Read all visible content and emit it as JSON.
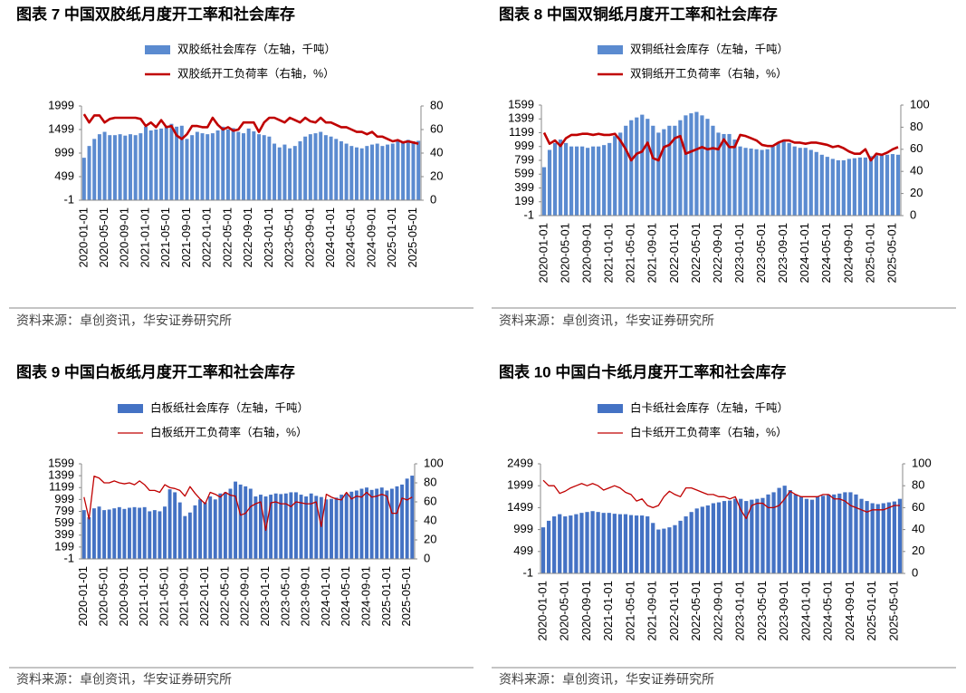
{
  "chart_data": [
    {
      "type": "combo",
      "title": "图表 7 中国双胶纸月度开工率和社会库存",
      "source": "资料来源：卓创资讯，华安证券研究所",
      "categories": [
        "2020-01-01",
        null,
        null,
        null,
        "2020-05-01",
        null,
        null,
        null,
        "2020-09-01",
        null,
        null,
        null,
        "2021-01-01",
        null,
        null,
        null,
        "2021-05-01",
        null,
        null,
        null,
        "2021-09-01",
        null,
        null,
        null,
        "2022-01-01",
        null,
        null,
        null,
        "2022-05-01",
        null,
        null,
        null,
        "2022-09-01",
        null,
        null,
        null,
        "2023-01-01",
        null,
        null,
        null,
        "2023-05-01",
        null,
        null,
        null,
        "2023-09-01",
        null,
        null,
        null,
        "2024-01-01",
        null,
        null,
        null,
        "2024-05-01",
        null,
        null,
        null,
        "2024-09-01",
        null,
        null,
        null,
        "2025-01-01",
        null,
        null,
        null,
        "2025-05-01",
        null
      ],
      "ylim": [
        -1,
        1999
      ],
      "yticks": [
        -1,
        499,
        999,
        1499,
        1999
      ],
      "y2lim": [
        0,
        80
      ],
      "y2ticks": [
        0,
        20,
        40,
        60,
        80
      ],
      "series": [
        {
          "name": "双胶纸社会库存（左轴，千吨）",
          "type": "bar",
          "color": "#5b8bd0",
          "values": [
            900,
            1150,
            1300,
            1400,
            1450,
            1380,
            1380,
            1400,
            1370,
            1400,
            1380,
            1420,
            1560,
            1480,
            1500,
            1520,
            1580,
            1620,
            1560,
            1580,
            1300,
            1380,
            1450,
            1420,
            1400,
            1420,
            1480,
            1560,
            1500,
            1530,
            1450,
            1420,
            1520,
            1460,
            1400,
            1380,
            1350,
            1200,
            1120,
            1180,
            1100,
            1150,
            1250,
            1350,
            1400,
            1420,
            1450,
            1380,
            1350,
            1300,
            1250,
            1200,
            1150,
            1120,
            1100,
            1150,
            1180,
            1200,
            1150,
            1180,
            1200,
            1250,
            1220,
            1280,
            1250,
            1260
          ]
        },
        {
          "name": "双胶纸开工负荷率（右轴，%）",
          "type": "line",
          "axis": "y2",
          "color": "#c00000",
          "values": [
            73,
            66,
            72,
            72,
            66,
            69,
            70,
            70,
            70,
            70,
            70,
            69,
            63,
            66,
            62,
            68,
            62,
            63,
            55,
            52,
            56,
            63,
            63,
            62,
            62,
            70,
            64,
            60,
            62,
            59,
            60,
            66,
            66,
            66,
            58,
            66,
            70,
            70,
            68,
            66,
            70,
            68,
            66,
            70,
            67,
            66,
            70,
            66,
            66,
            64,
            62,
            62,
            60,
            58,
            58,
            56,
            58,
            54,
            54,
            52,
            50,
            51,
            49,
            50,
            49,
            48
          ]
        }
      ]
    },
    {
      "type": "combo",
      "title": "图表 8 中国双铜纸月度开工率和社会库存",
      "source": "资料来源：卓创资讯，华安证券研究所",
      "categories": [
        "2020-01-01",
        null,
        null,
        null,
        "2020-05-01",
        null,
        null,
        null,
        "2020-09-01",
        null,
        null,
        null,
        "2021-01-01",
        null,
        null,
        null,
        "2021-05-01",
        null,
        null,
        null,
        "2021-09-01",
        null,
        null,
        null,
        "2022-01-01",
        null,
        null,
        null,
        "2022-05-01",
        null,
        null,
        null,
        "2022-09-01",
        null,
        null,
        null,
        "2023-01-01",
        null,
        null,
        null,
        "2023-05-01",
        null,
        null,
        null,
        "2023-09-01",
        null,
        null,
        null,
        "2024-01-01",
        null,
        null,
        null,
        "2024-05-01",
        null,
        null,
        null,
        "2024-09-01",
        null,
        null,
        null,
        "2025-01-01",
        null,
        null,
        null,
        "2025-05-01",
        null
      ],
      "ylim": [
        -1,
        1599
      ],
      "yticks": [
        -1,
        199,
        399,
        599,
        799,
        999,
        1199,
        1399,
        1599
      ],
      "y2lim": [
        0,
        100
      ],
      "y2ticks": [
        0,
        20,
        40,
        60,
        80,
        100
      ],
      "series": [
        {
          "name": "双铜纸社会库存（左轴，千吨）",
          "type": "bar",
          "color": "#5b8bd0",
          "values": [
            700,
            950,
            1050,
            1100,
            1050,
            1000,
            1000,
            1000,
            980,
            1000,
            1000,
            1020,
            1050,
            1150,
            1200,
            1300,
            1380,
            1420,
            1460,
            1400,
            1300,
            1200,
            1250,
            1300,
            1300,
            1380,
            1450,
            1480,
            1500,
            1450,
            1400,
            1300,
            1200,
            1180,
            1180,
            1100,
            1000,
            980,
            970,
            960,
            950,
            960,
            1000,
            1050,
            1080,
            1050,
            1000,
            980,
            980,
            950,
            920,
            880,
            850,
            820,
            800,
            800,
            820,
            830,
            840,
            840,
            860,
            870,
            870,
            880,
            890,
            880
          ]
        },
        {
          "name": "双铜纸开工负荷率（右轴，%）",
          "type": "line",
          "axis": "y2",
          "color": "#c00000",
          "values": [
            75,
            65,
            68,
            63,
            70,
            73,
            73,
            74,
            74,
            73,
            74,
            73,
            73,
            74,
            68,
            60,
            50,
            56,
            58,
            66,
            52,
            50,
            62,
            64,
            70,
            72,
            56,
            58,
            60,
            62,
            60,
            61,
            60,
            69,
            62,
            62,
            73,
            72,
            70,
            68,
            64,
            63,
            63,
            66,
            68,
            68,
            66,
            66,
            65,
            66,
            66,
            65,
            64,
            62,
            63,
            61,
            58,
            56,
            56,
            60,
            50,
            56,
            55,
            57,
            60,
            62
          ]
        }
      ]
    },
    {
      "type": "combo",
      "title": "图表 9 中国白板纸月度开工率和社会库存",
      "source": "资料来源：卓创资讯，华安证券研究所",
      "categories": [
        "2020-01-01",
        null,
        null,
        null,
        "2020-05-01",
        null,
        null,
        null,
        "2020-09-01",
        null,
        null,
        null,
        "2021-01-01",
        null,
        null,
        null,
        "2021-05-01",
        null,
        null,
        null,
        "2021-09-01",
        null,
        null,
        null,
        "2022-01-01",
        null,
        null,
        null,
        "2022-05-01",
        null,
        null,
        null,
        "2022-09-01",
        null,
        null,
        null,
        "2023-01-01",
        null,
        null,
        null,
        "2023-05-01",
        null,
        null,
        null,
        "2023-09-01",
        null,
        null,
        null,
        "2024-01-01",
        null,
        null,
        null,
        "2024-05-01",
        null,
        null,
        null,
        "2024-09-01",
        null,
        null,
        null,
        "2025-01-01",
        null,
        null,
        null,
        "2025-05-01",
        null
      ],
      "ylim": [
        -1,
        1599
      ],
      "yticks": [
        -1,
        199,
        399,
        599,
        799,
        999,
        1199,
        1399,
        1599
      ],
      "y2lim": [
        0,
        100
      ],
      "y2ticks": [
        0,
        20,
        40,
        60,
        80,
        100
      ],
      "series": [
        {
          "name": "白板纸社会库存（左轴，千吨）",
          "type": "bar",
          "color": "#4472c4",
          "values": [
            820,
            700,
            850,
            880,
            820,
            830,
            850,
            870,
            840,
            860,
            870,
            860,
            870,
            800,
            820,
            800,
            880,
            1170,
            1120,
            950,
            720,
            780,
            900,
            1000,
            950,
            1050,
            1000,
            1100,
            1120,
            1180,
            1300,
            1250,
            1220,
            1180,
            1050,
            1080,
            1050,
            1080,
            1100,
            1090,
            1100,
            1120,
            1120,
            1080,
            1050,
            1100,
            1060,
            1040,
            1000,
            1010,
            1030,
            1080,
            1100,
            1130,
            1150,
            1180,
            1200,
            1160,
            1180,
            1200,
            1150,
            1180,
            1220,
            1250,
            1350,
            1400
          ]
        },
        {
          "name": "白板纸开工负荷率（右轴，%）",
          "type": "line",
          "axis": "y2",
          "color": "#c00000",
          "values": [
            65,
            42,
            87,
            85,
            80,
            80,
            82,
            80,
            79,
            80,
            78,
            82,
            78,
            72,
            72,
            70,
            78,
            75,
            74,
            72,
            66,
            76,
            69,
            63,
            58,
            70,
            68,
            65,
            70,
            67,
            66,
            46,
            48,
            55,
            58,
            60,
            30,
            59,
            60,
            58,
            58,
            55,
            60,
            59,
            58,
            58,
            60,
            34,
            68,
            65,
            63,
            62,
            70,
            63,
            66,
            65,
            70,
            65,
            66,
            68,
            66,
            48,
            48,
            64,
            62,
            65
          ]
        }
      ]
    },
    {
      "type": "combo",
      "title": "图表 10 中国白卡纸月度开工率和社会库存",
      "source": "资料来源：卓创资讯，华安证券研究所",
      "categories": [
        "2020-01-01",
        null,
        null,
        null,
        "2020-05-01",
        null,
        null,
        null,
        "2020-09-01",
        null,
        null,
        null,
        "2021-01-01",
        null,
        null,
        null,
        "2021-05-01",
        null,
        null,
        null,
        "2021-09-01",
        null,
        null,
        null,
        "2022-01-01",
        null,
        null,
        null,
        "2022-05-01",
        null,
        null,
        null,
        "2022-09-01",
        null,
        null,
        null,
        "2023-01-01",
        null,
        null,
        null,
        "2023-05-01",
        null,
        null,
        null,
        "2023-09-01",
        null,
        null,
        null,
        "2024-01-01",
        null,
        null,
        null,
        "2024-05-01",
        null,
        null,
        null,
        "2024-09-01",
        null,
        null,
        null,
        "2025-01-01",
        null,
        null,
        null,
        "2025-05-01",
        null
      ],
      "ylim": [
        -1,
        2499
      ],
      "yticks": [
        -1,
        499,
        999,
        1499,
        1999,
        2499
      ],
      "y2lim": [
        0,
        100
      ],
      "y2ticks": [
        0,
        20,
        40,
        60,
        80,
        100
      ],
      "series": [
        {
          "name": "白卡纸社会库存（左轴，千吨）",
          "type": "bar",
          "color": "#4472c4",
          "values": [
            1050,
            1200,
            1300,
            1350,
            1300,
            1320,
            1350,
            1380,
            1400,
            1420,
            1400,
            1380,
            1380,
            1360,
            1350,
            1350,
            1330,
            1320,
            1320,
            1300,
            1150,
            1000,
            1020,
            1050,
            1100,
            1200,
            1300,
            1400,
            1480,
            1520,
            1550,
            1600,
            1620,
            1650,
            1660,
            1700,
            1700,
            1650,
            1680,
            1700,
            1720,
            1800,
            1850,
            1950,
            2000,
            1900,
            1800,
            1750,
            1700,
            1680,
            1750,
            1770,
            1800,
            1800,
            1820,
            1850,
            1850,
            1800,
            1700,
            1650,
            1600,
            1580,
            1600,
            1620,
            1640,
            1700
          ]
        },
        {
          "name": "白卡纸开工负荷率（右轴，%）",
          "type": "line",
          "axis": "y2",
          "color": "#c00000",
          "values": [
            85,
            80,
            80,
            73,
            75,
            78,
            80,
            82,
            80,
            82,
            80,
            76,
            78,
            80,
            78,
            74,
            72,
            66,
            68,
            62,
            60,
            62,
            70,
            75,
            72,
            70,
            78,
            78,
            76,
            74,
            72,
            72,
            70,
            70,
            68,
            70,
            58,
            50,
            62,
            64,
            64,
            60,
            60,
            62,
            68,
            75,
            72,
            70,
            70,
            70,
            70,
            72,
            72,
            68,
            68,
            66,
            62,
            60,
            58,
            56,
            58,
            58,
            58,
            60,
            62,
            62
          ]
        }
      ]
    }
  ]
}
